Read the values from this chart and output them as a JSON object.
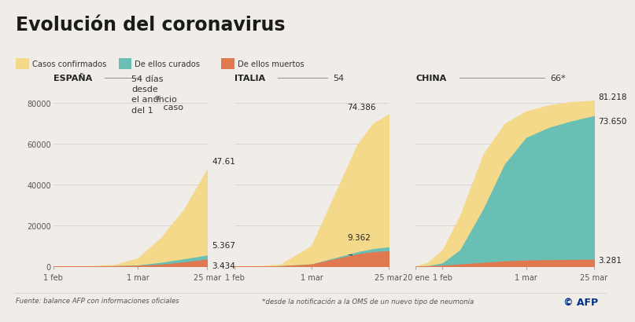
{
  "title": "Evolución del coronavirus",
  "bg_color": "#f0ede8",
  "legend_items": [
    "Casos confirmados",
    "De ellos curados",
    "De ellos muertos"
  ],
  "legend_colors": [
    "#f5d98b",
    "#6abfb5",
    "#e07850"
  ],
  "color_confirmed": "#f5d98b",
  "color_recovered": "#6abfb5",
  "color_deaths": "#e07850",
  "espana": {
    "x": [
      0,
      0.05,
      0.15,
      0.25,
      0.4,
      0.55,
      0.7,
      0.85,
      1.0
    ],
    "confirmed": [
      0,
      10,
      50,
      200,
      800,
      4000,
      14000,
      28000,
      47610
    ],
    "recovered": [
      0,
      2,
      10,
      40,
      150,
      500,
      1800,
      3500,
      5367
    ],
    "deaths": [
      0,
      1,
      5,
      20,
      80,
      300,
      900,
      2000,
      3434
    ],
    "xticks_pos": [
      0.0,
      0.55,
      1.0
    ],
    "xticks_labels": [
      "1 feb",
      "1 mar",
      "25 mar"
    ]
  },
  "italia": {
    "x": [
      0,
      0.05,
      0.15,
      0.3,
      0.5,
      0.65,
      0.8,
      0.9,
      1.0
    ],
    "confirmed": [
      0,
      20,
      100,
      1000,
      10000,
      35000,
      60000,
      70000,
      74386
    ],
    "recovered": [
      0,
      3,
      20,
      150,
      1000,
      4000,
      7000,
      8500,
      9362
    ],
    "deaths": [
      0,
      1,
      10,
      100,
      1000,
      3500,
      6000,
      7000,
      7503
    ],
    "xticks_pos": [
      0.0,
      0.5,
      1.0
    ],
    "xticks_labels": [
      "1 feb",
      "1 mar",
      "25 mar"
    ]
  },
  "china": {
    "x": [
      0,
      0.07,
      0.15,
      0.25,
      0.38,
      0.5,
      0.62,
      0.75,
      0.87,
      1.0
    ],
    "confirmed": [
      0,
      2000,
      8000,
      25000,
      55000,
      70000,
      76000,
      79000,
      80500,
      81218
    ],
    "recovered": [
      0,
      200,
      1500,
      8000,
      28000,
      50000,
      63000,
      68000,
      71000,
      73650
    ],
    "deaths": [
      0,
      100,
      400,
      1000,
      1800,
      2500,
      2900,
      3100,
      3200,
      3281
    ],
    "xticks_pos": [
      0.0,
      0.15,
      0.62,
      1.0
    ],
    "xticks_labels": [
      "20 ene",
      "1 feb",
      "1 mar",
      "25 mar"
    ]
  },
  "ymax": 85000,
  "yticks": [
    0,
    20000,
    40000,
    60000,
    80000
  ],
  "source": "Fuente: balance AFP con informaciones oficiales",
  "note": "*desde la notificación a la OMS de un nuevo tipo de neumonía"
}
